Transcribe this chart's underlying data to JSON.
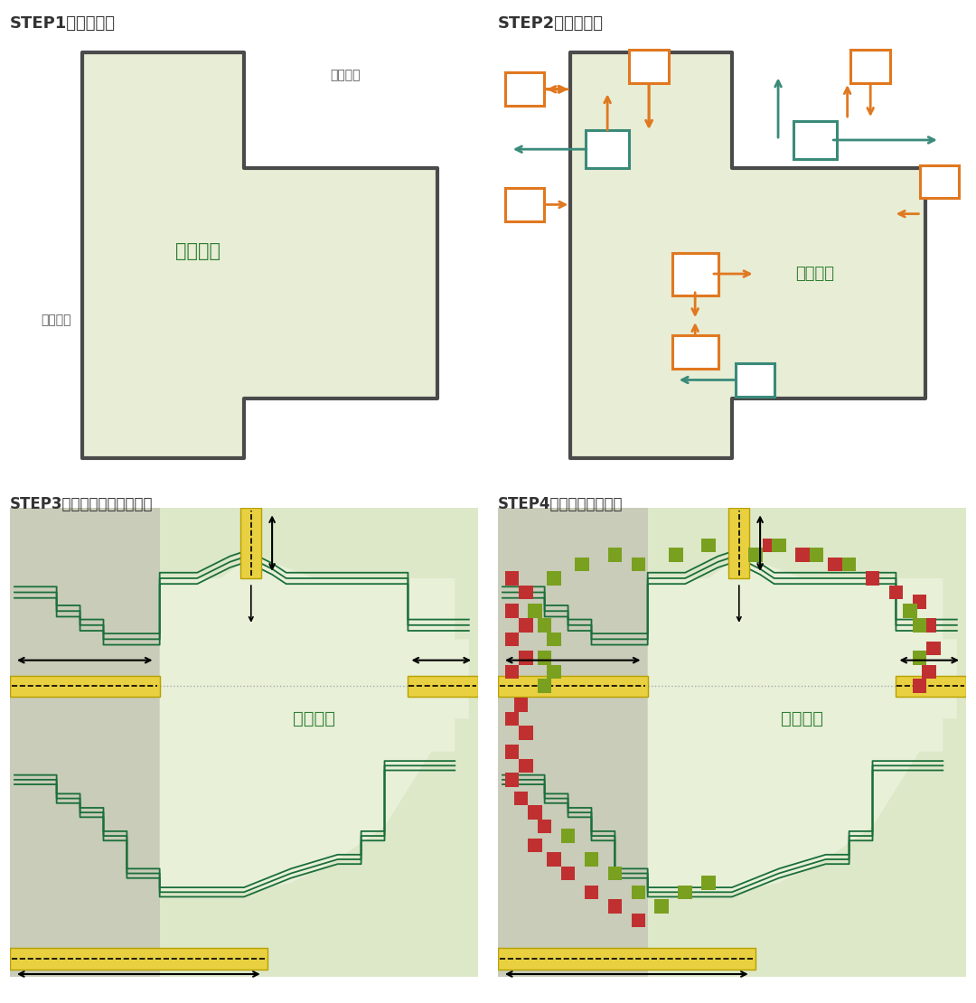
{
  "bg_color": "#ffffff",
  "farmland_fill": "#e8edd5",
  "farmland_border": "#4a4a4a",
  "orange_color": "#e07820",
  "teal_color": "#3a8a7a",
  "dark_green": "#2e7d32",
  "yellow_fill": "#e8c830",
  "yellow_edge": "#b8a000",
  "gray_dot_color": "#aaaaaa",
  "step1_title": "STEP1：规划用地",
  "step2_title": "STEP2：镜像交织",
  "step3_title": "STEP3：扩大生态绿地的边界",
  "step4_title": "STEP4：公共活力的集聚",
  "jiben_label": "基本农田",
  "jianshe1": "建设用地",
  "jianshe2": "建设用地",
  "green_path_color": "#1a6e3a",
  "gray_zone_color": "#c8ccb8",
  "inner_farm_color": "#edf2de",
  "red_block_color": "#c03030",
  "olive_block_color": "#7aa020"
}
